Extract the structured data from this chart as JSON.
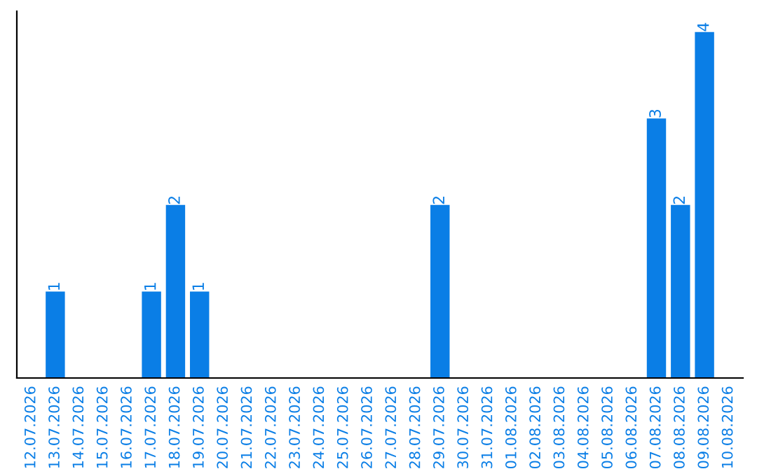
{
  "chart_data": {
    "type": "bar",
    "categories": [
      "12.07.2026",
      "13.07.2026",
      "14.07.2026",
      "15.07.2026",
      "16.07.2026",
      "17.07.2026",
      "18.07.2026",
      "19.07.2026",
      "20.07.2026",
      "21.07.2026",
      "22.07.2026",
      "23.07.2026",
      "24.07.2026",
      "25.07.2026",
      "26.07.2026",
      "27.07.2026",
      "28.07.2026",
      "29.07.2026",
      "30.07.2026",
      "31.07.2026",
      "01.08.2026",
      "02.08.2026",
      "03.08.2026",
      "04.08.2026",
      "05.08.2026",
      "06.08.2026",
      "07.08.2026",
      "08.08.2026",
      "09.08.2026",
      "10.08.2026"
    ],
    "values": [
      0,
      1,
      0,
      0,
      0,
      1,
      2,
      1,
      0,
      0,
      0,
      0,
      0,
      0,
      0,
      0,
      0,
      2,
      0,
      0,
      0,
      0,
      0,
      0,
      0,
      0,
      3,
      2,
      4,
      0
    ],
    "value_labels": [
      null,
      "1",
      null,
      null,
      null,
      "1",
      "2",
      "1",
      null,
      null,
      null,
      null,
      null,
      null,
      null,
      null,
      null,
      "2",
      null,
      null,
      null,
      null,
      null,
      null,
      null,
      null,
      "3",
      "2",
      "4",
      null
    ],
    "color": "#0a7ee6",
    "tick_labels": "x",
    "grid": false,
    "legend": false
  }
}
